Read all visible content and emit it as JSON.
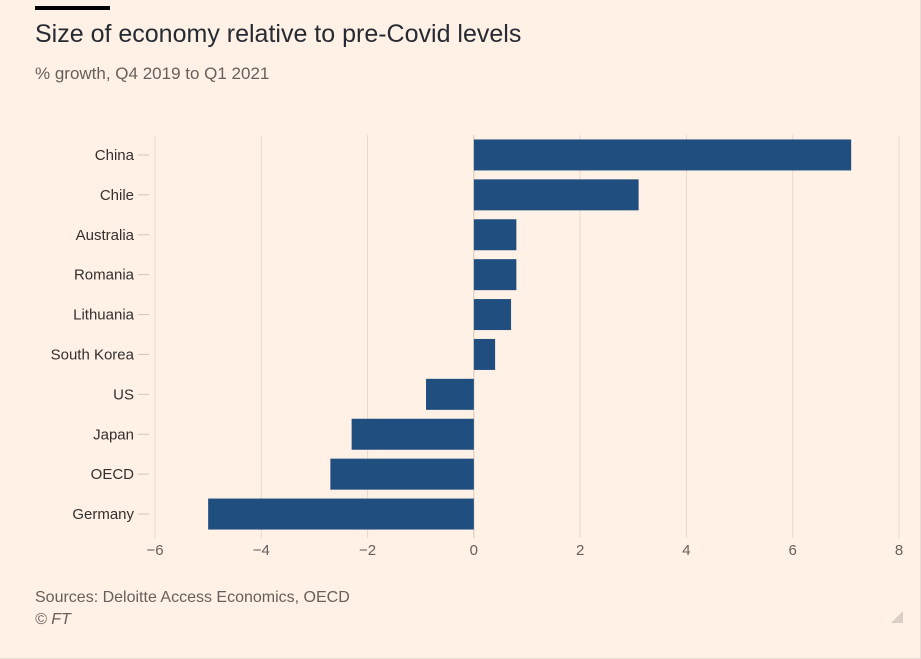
{
  "header": {
    "title": "Size of economy relative to pre-Covid levels",
    "subtitle": "% growth, Q4 2019 to Q1 2021"
  },
  "footer": {
    "source": "Sources: Deloitte Access Economics, OECD",
    "copyright": "© FT"
  },
  "colors": {
    "background": "#fff1e5",
    "bar": "#1f4e7f",
    "grid": "#e6d9ce",
    "text": "#33302e"
  },
  "chart_data": {
    "type": "bar",
    "orientation": "horizontal",
    "title": "Size of economy relative to pre-Covid levels",
    "subtitle": "% growth, Q4 2019 to Q1 2021",
    "categories": [
      "China",
      "Chile",
      "Australia",
      "Romania",
      "Lithuania",
      "South Korea",
      "US",
      "Japan",
      "OECD",
      "Germany"
    ],
    "values": [
      7.1,
      3.1,
      0.8,
      0.8,
      0.7,
      0.4,
      -0.9,
      -2.3,
      -2.7,
      -5.0
    ],
    "xlim": [
      -6,
      8
    ],
    "xticks": [
      -6,
      -4,
      -2,
      0,
      2,
      4,
      6,
      8
    ],
    "xlabel": "",
    "ylabel": "",
    "grid": true,
    "legend": false
  }
}
